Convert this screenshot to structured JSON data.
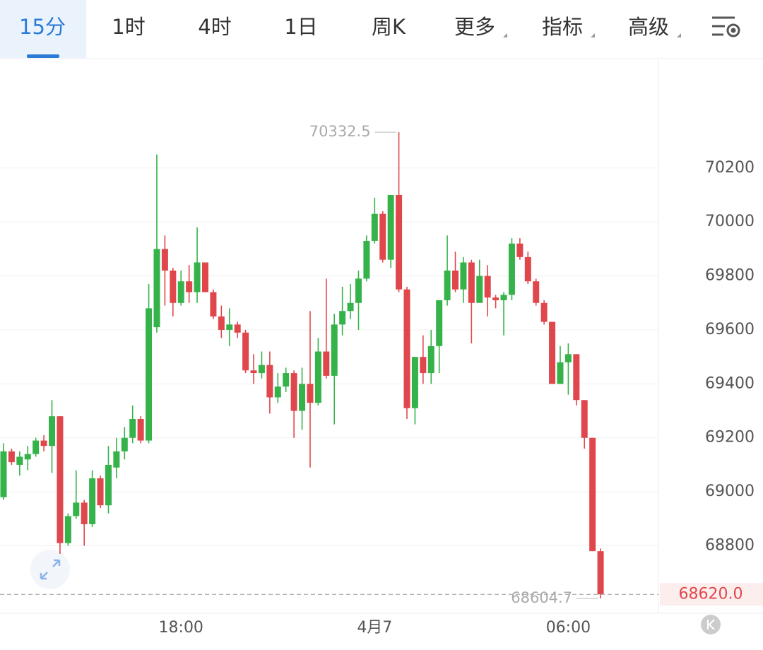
{
  "tabs": [
    "15分",
    "1时",
    "4时",
    "1日",
    "周K",
    "更多",
    "指标",
    "高级"
  ],
  "chart_data": {
    "type": "candlestick",
    "categories": [
      null,
      null,
      null,
      null,
      null,
      null,
      null,
      null,
      null,
      null,
      null,
      null,
      null,
      null,
      null,
      null,
      null,
      null,
      null,
      null,
      null,
      null,
      "18:00",
      null,
      null,
      null,
      null,
      null,
      null,
      null,
      null,
      null,
      null,
      null,
      null,
      null,
      null,
      null,
      null,
      null,
      null,
      null,
      null,
      null,
      null,
      null,
      "4月7",
      null,
      null,
      null,
      null,
      null,
      null,
      null,
      null,
      null,
      null,
      null,
      null,
      null,
      null,
      null,
      null,
      null,
      null,
      null,
      null,
      null,
      null,
      null,
      "06:00",
      null,
      null,
      null,
      null
    ],
    "open": [
      68980,
      69150,
      69100,
      69120,
      69140,
      69190,
      69170,
      69280,
      68810,
      68910,
      68960,
      68880,
      69050,
      68950,
      69090,
      69150,
      69200,
      69270,
      69190,
      69610,
      69900,
      69820,
      69700,
      69780,
      69740,
      69850,
      69740,
      69650,
      69600,
      69620,
      69590,
      69450,
      69440,
      69470,
      69350,
      69390,
      69440,
      69300,
      69400,
      69330,
      69520,
      69430,
      69620,
      69670,
      69700,
      69790,
      69930,
      70030,
      69860,
      70100,
      69750,
      69310,
      69500,
      69440,
      69540,
      69710,
      69820,
      69750,
      69850,
      69700,
      69800,
      69720,
      69710,
      69730,
      69920,
      69870,
      69780,
      69700,
      69630,
      69400,
      69480,
      69510,
      69340,
      69200,
      68780
    ],
    "high": [
      69180,
      69160,
      69150,
      69170,
      69200,
      69210,
      69340,
      69280,
      68920,
      69080,
      68970,
      69080,
      69060,
      69170,
      69200,
      69240,
      69320,
      69280,
      69770,
      70250,
      69950,
      69830,
      69820,
      69840,
      69980,
      69850,
      69750,
      69690,
      69680,
      69630,
      69600,
      69510,
      69520,
      69520,
      69440,
      69460,
      69450,
      69460,
      69670,
      69570,
      69790,
      69660,
      69760,
      69770,
      69820,
      69950,
      70090,
      70040,
      70100,
      70332.5,
      69760,
      69500,
      69580,
      69600,
      69710,
      69950,
      69890,
      69870,
      69860,
      69860,
      69840,
      69730,
      69740,
      69940,
      69940,
      69890,
      69790,
      69710,
      69630,
      69540,
      69550,
      69510,
      69340,
      69200,
      68790
    ],
    "low": [
      68970,
      69100,
      69060,
      69080,
      69130,
      69150,
      69070,
      68770,
      68800,
      68900,
      68800,
      68870,
      68940,
      68920,
      69050,
      69120,
      69180,
      69180,
      69180,
      69590,
      69690,
      69650,
      69690,
      69700,
      69700,
      69740,
      69640,
      69570,
      69540,
      69570,
      69440,
      69400,
      69420,
      69290,
      69330,
      69370,
      69200,
      69230,
      69090,
      69320,
      69420,
      69250,
      69580,
      69640,
      69600,
      69780,
      69920,
      69850,
      69830,
      69740,
      69270,
      69250,
      69400,
      69400,
      69440,
      69690,
      69740,
      69700,
      69550,
      69700,
      69650,
      69680,
      69580,
      69710,
      69860,
      69770,
      69690,
      69620,
      69400,
      69400,
      69360,
      69320,
      69160,
      68780,
      68604.7
    ],
    "close": [
      69150,
      69110,
      69130,
      69140,
      69190,
      69170,
      69280,
      68810,
      68910,
      68960,
      68880,
      69050,
      68950,
      69100,
      69150,
      69200,
      69270,
      69190,
      69680,
      69900,
      69820,
      69700,
      69780,
      69740,
      69850,
      69740,
      69650,
      69600,
      69620,
      69590,
      69450,
      69440,
      69470,
      69350,
      69390,
      69440,
      69300,
      69400,
      69330,
      69520,
      69430,
      69620,
      69670,
      69700,
      69790,
      69930,
      70030,
      69860,
      70100,
      69750,
      69310,
      69500,
      69440,
      69540,
      69710,
      69820,
      69750,
      69850,
      69700,
      69800,
      69720,
      69710,
      69730,
      69920,
      69870,
      69780,
      69700,
      69630,
      69400,
      69480,
      69510,
      69340,
      69200,
      68780,
      68620
    ],
    "up_color": "#35b34a",
    "down_color": "#e0474c",
    "ylim": [
      68550,
      70600
    ],
    "yticks": [
      68800,
      69000,
      69200,
      69400,
      69600,
      69800,
      70000,
      70200
    ],
    "grid": true,
    "max_label": "70332.5",
    "min_label": "68604.7",
    "last_label": "68620.0"
  }
}
